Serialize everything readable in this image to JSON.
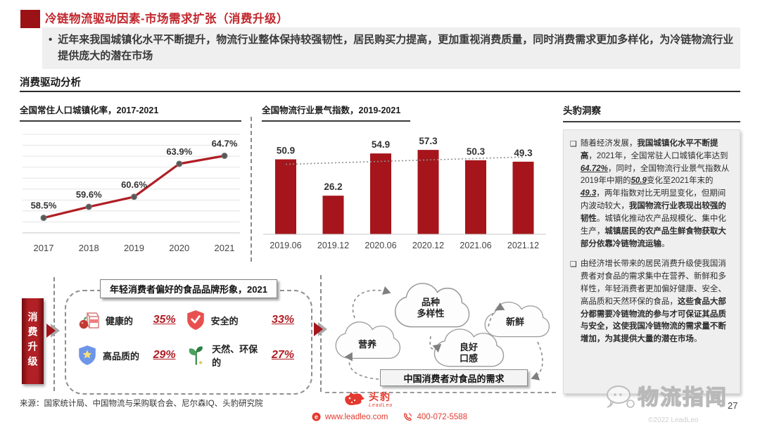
{
  "colors": {
    "brand_red": "#e4392e",
    "dark_red": "#9b1216",
    "title_red": "#c1272d",
    "bar_red": "#a5151b",
    "line_red": "#b01e24",
    "panel_gray": "#efefef",
    "grid_gray": "#e4e4e4"
  },
  "header": {
    "title": "冷链物流驱动因素-市场需求扩张（消费升级）",
    "bullet_marker": "•",
    "bullet": "近年来我国城镇化水平不断提升，物流行业整体保持较强韧性，居民购买力提高，更加重视消费质量，同时消费需求更加多样化，为冷链物流行业提供庞大的潜在市场"
  },
  "section_title": "消费驱动分析",
  "chart_data": [
    {
      "type": "line",
      "title": "全国常住人口城镇化率，2017-2021",
      "categories": [
        "2017",
        "2018",
        "2019",
        "2020",
        "2021"
      ],
      "values": [
        58.5,
        59.6,
        60.6,
        63.9,
        64.7
      ],
      "labels": [
        "58.5%",
        "59.6%",
        "60.6%",
        "63.9%",
        "64.7%"
      ],
      "ylim": [
        57,
        66
      ],
      "grid": true,
      "legend": "none",
      "xlabel": "",
      "ylabel": ""
    },
    {
      "type": "bar",
      "title": "全国物流行业景气指数，2019-2021",
      "categories": [
        "2019.06",
        "2019.12",
        "2020.06",
        "2020.12",
        "2021.06",
        "2021.12"
      ],
      "values": [
        50.9,
        26.2,
        54.9,
        57.3,
        50.3,
        49.3
      ],
      "ylim": [
        0,
        65
      ],
      "trendline": [
        47.5,
        52.5
      ],
      "grid": false,
      "legend": "none",
      "xlabel": "",
      "ylabel": ""
    }
  ],
  "insight": {
    "title": "头豹洞察",
    "bullet_marker": "❑",
    "bullets": [
      [
        {
          "t": "随着经济发展，"
        },
        {
          "t": "我国城镇化水平不断提高",
          "b": true
        },
        {
          "t": "，2021年，全国常驻人口城镇化率达到"
        },
        {
          "t": "64.72%",
          "u": true
        },
        {
          "t": "，同时，全国物流行业景气指数从2019年中期的"
        },
        {
          "t": "50.9",
          "u": true
        },
        {
          "t": "变化至2021年末的"
        },
        {
          "t": "49.3",
          "u": true
        },
        {
          "t": "，两年指数对比无明显变化，但期间内波动较大，"
        },
        {
          "t": "我国物流行业表现出较强的韧性",
          "b": true
        },
        {
          "t": "。城镇化推动农产品规模化、集中化生产，"
        },
        {
          "t": "城镇居民的农产品生鲜食物获取大部分依靠冷链物流运输",
          "b": true
        },
        {
          "t": "。"
        }
      ],
      [
        {
          "t": "由经济增长带来的居民消费升级使我国消费者对食品的需求集中在营养、新鲜和多样性，年轻消费者更加偏好健康、安全、高品质和天然环保的食品，"
        },
        {
          "t": "这些食品大部分都需要冷链物流的参与才可保证其品质与安全，这使我国冷链物流的需求量不断增加，为其提供大量的潜在市场",
          "b": true
        },
        {
          "t": "。"
        }
      ]
    ]
  },
  "upgrade": {
    "side_label": "消费升级",
    "box_title": "年轻消费者偏好的食品品牌形象，2021",
    "items": [
      {
        "icon": "milk-apple-icon",
        "label": "健康的",
        "value": "35%"
      },
      {
        "icon": "shield-check-icon",
        "label": "安全的",
        "value": "33%"
      },
      {
        "icon": "shield-star-icon",
        "label": "高品质的",
        "value": "29%"
      },
      {
        "icon": "sprout-icon",
        "label": "天然、环保的",
        "value": "27%"
      }
    ]
  },
  "demand": {
    "clouds": [
      "营养",
      "品种\n多样性",
      "良好\n口感",
      "新鲜"
    ],
    "box": "中国消费者对食品的需求"
  },
  "footer": {
    "source": "来源：国家统计局、中国物流与采购联合会、尼尔森IQ、头豹研究院",
    "logo_cn": "头豹",
    "logo_en": "LeadLeo",
    "website": "www.leadleo.com",
    "phone": "400-072-5588",
    "watermark": "物流指闻",
    "page": "27",
    "copyright": "©2022 LeadLeo"
  }
}
